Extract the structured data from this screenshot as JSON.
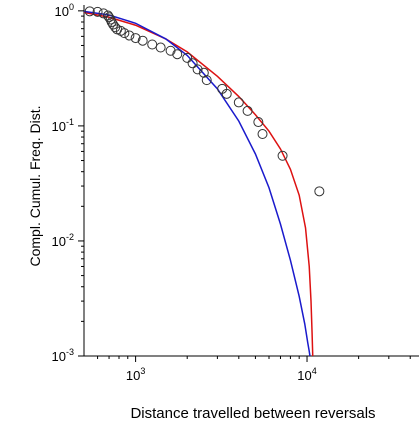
{
  "chart_data": {
    "type": "scatter",
    "xlabel": "Distance travelled between reversals",
    "ylabel": "Compl. Cumul. Freq. Dist.",
    "x_scale": "log",
    "y_scale": "log",
    "xlim": [
      500,
      45000
    ],
    "ylim": [
      0.001,
      1.08
    ],
    "grid": false,
    "x_ticks": [
      {
        "value": 1000,
        "base": "10",
        "exp": "3"
      },
      {
        "value": 10000,
        "base": "10",
        "exp": "4"
      }
    ],
    "y_ticks": [
      {
        "value": 0.001,
        "base": "10",
        "exp": "-3"
      },
      {
        "value": 0.01,
        "base": "10",
        "exp": "-2"
      },
      {
        "value": 0.1,
        "base": "10",
        "exp": "-1"
      },
      {
        "value": 1,
        "base": "10",
        "exp": "0"
      }
    ],
    "points": {
      "x": [
        540,
        600,
        650,
        690,
        700,
        715,
        725,
        740,
        760,
        780,
        820,
        860,
        920,
        1000,
        1100,
        1250,
        1400,
        1600,
        1750,
        2000,
        2150,
        2300,
        2500,
        2600,
        3200,
        3400,
        4000,
        4500,
        5200,
        5500,
        7200,
        11800
      ],
      "y": [
        0.99,
        0.98,
        0.95,
        0.91,
        0.88,
        0.84,
        0.8,
        0.76,
        0.72,
        0.69,
        0.67,
        0.64,
        0.61,
        0.58,
        0.55,
        0.51,
        0.48,
        0.45,
        0.42,
        0.39,
        0.35,
        0.31,
        0.29,
        0.25,
        0.21,
        0.19,
        0.16,
        0.135,
        0.108,
        0.085,
        0.055,
        0.027
      ],
      "marker": "open-circle",
      "color": "#333333"
    },
    "series": [
      {
        "color": "#dd1111",
        "x": [
          500,
          700,
          1000,
          1500,
          2000,
          3000,
          4000,
          5000,
          6000,
          7000,
          8000,
          9000,
          9800,
          10300,
          10550,
          10700,
          10800
        ],
        "y": [
          0.97,
          0.88,
          0.75,
          0.57,
          0.44,
          0.27,
          0.18,
          0.125,
          0.09,
          0.063,
          0.042,
          0.025,
          0.013,
          0.006,
          0.003,
          0.0016,
          0.001
        ]
      },
      {
        "color": "#1a1acc",
        "x": [
          500,
          700,
          1000,
          1500,
          2000,
          3000,
          4000,
          5000,
          6000,
          7000,
          8000,
          9000,
          9700,
          10100,
          10300,
          10400
        ],
        "y": [
          0.99,
          0.92,
          0.78,
          0.57,
          0.41,
          0.21,
          0.11,
          0.057,
          0.029,
          0.014,
          0.0068,
          0.0033,
          0.0019,
          0.0013,
          0.0011,
          0.001
        ]
      }
    ]
  }
}
